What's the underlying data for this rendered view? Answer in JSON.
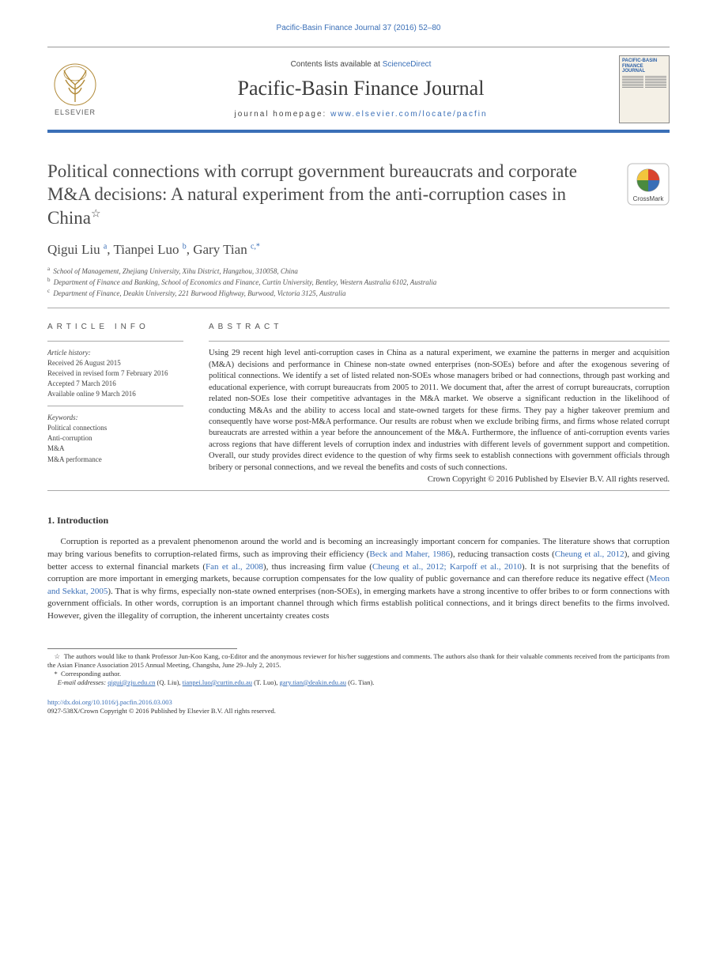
{
  "colors": {
    "link": "#3a6fb7",
    "text": "#333333",
    "rule_blue": "#3a6fb7",
    "muted": "#555555"
  },
  "typography": {
    "body_family": "Times New Roman",
    "sans_family": "Arial",
    "title_fontsize_pt": 17,
    "authors_fontsize_pt": 13,
    "abstract_fontsize_pt": 8,
    "body_fontsize_pt": 8.5,
    "footnote_fontsize_pt": 6.5
  },
  "running_head": "Pacific-Basin Finance Journal 37 (2016) 52–80",
  "masthead": {
    "contents_prefix": "Contents lists available at ",
    "contents_link": "ScienceDirect",
    "journal": "Pacific-Basin Finance Journal",
    "homepage_prefix": "journal homepage: ",
    "homepage_url": "www.elsevier.com/locate/pacfin",
    "publisher_word": "ELSEVIER",
    "cover_title": "PACIFIC-BASIN FINANCE JOURNAL"
  },
  "crossmark_label": "CrossMark",
  "title": "Political connections with corrupt government bureaucrats and corporate M&A decisions: A natural experiment from the anti-corruption cases in China",
  "title_star": "☆",
  "authors_line": {
    "items": [
      {
        "name": "Qigui Liu",
        "aff": "a"
      },
      {
        "name": "Tianpei Luo",
        "aff": "b"
      },
      {
        "name": "Gary Tian",
        "aff": "c,",
        "corr": "*"
      }
    ]
  },
  "affiliations": [
    {
      "key": "a",
      "text": "School of Management, Zhejiang University, Xihu District, Hangzhou, 310058, China"
    },
    {
      "key": "b",
      "text": "Department of Finance and Banking, School of Economics and Finance, Curtin University, Bentley, Western Australia 6102, Australia"
    },
    {
      "key": "c",
      "text": "Department of Finance, Deakin University, 221 Burwood Highway, Burwood, Victoria 3125, Australia"
    }
  ],
  "article_info": {
    "label": "article info",
    "history_label": "Article history:",
    "history": [
      "Received 26 August 2015",
      "Received in revised form 7 February 2016",
      "Accepted 7 March 2016",
      "Available online 9 March 2016"
    ],
    "keywords_label": "Keywords:",
    "keywords": [
      "Political connections",
      "Anti-corruption",
      "M&A",
      "M&A performance"
    ]
  },
  "abstract": {
    "label": "abstract",
    "text": "Using 29 recent high level anti-corruption cases in China as a natural experiment, we examine the patterns in merger and acquisition (M&A) decisions and performance in Chinese non-state owned enterprises (non-SOEs) before and after the exogenous severing of political connections. We identify a set of listed related non-SOEs whose managers bribed or had connections, through past working and educational experience, with corrupt bureaucrats from 2005 to 2011. We document that, after the arrest of corrupt bureaucrats, corruption related non-SOEs lose their competitive advantages in the M&A market. We observe a significant reduction in the likelihood of conducting M&As and the ability to access local and state-owned targets for these firms. They pay a higher takeover premium and consequently have worse post-M&A performance. Our results are robust when we exclude bribing firms, and firms whose related corrupt bureaucrats are arrested within a year before the announcement of the M&A. Furthermore, the influence of anti-corruption events varies across regions that have different levels of corruption index and industries with different levels of government support and competition. Overall, our study provides direct evidence to the question of why firms seek to establish connections with government officials through bribery or personal connections, and we reveal the benefits and costs of such connections.",
    "copyright": "Crown Copyright © 2016 Published by Elsevier B.V. All rights reserved."
  },
  "section1": {
    "heading": "1. Introduction",
    "para": "Corruption is reported as a prevalent phenomenon around the world and is becoming an increasingly important concern for companies. The literature shows that corruption may bring various benefits to corruption-related firms, such as improving their efficiency (Beck and Maher, 1986), reducing transaction costs (Cheung et al., 2012), and giving better access to external financial markets (Fan et al., 2008), thus increasing firm value (Cheung et al., 2012; Karpoff et al., 2010). It is not surprising that the benefits of corruption are more important in emerging markets, because corruption compensates for the low quality of public governance and can therefore reduce its negative effect (Meon and Sekkat, 2005). That is why firms, especially non-state owned enterprises (non-SOEs), in emerging markets have a strong incentive to offer bribes to or form connections with government officials. In other words, corruption is an important channel through which firms establish political connections, and it brings direct benefits to the firms involved. However, given the illegality of corruption, the inherent uncertainty creates costs",
    "citations": [
      "Beck and Maher, 1986",
      "Cheung et al., 2012",
      "Fan et al., 2008",
      "Cheung et al., 2012; Karpoff et al., 2010",
      "Meon and Sekkat, 2005"
    ]
  },
  "footnotes": {
    "ack": "The authors would like to thank Professor Jun-Koo Kang, co-Editor and the anonymous reviewer for his/her suggestions and comments. The authors also thank for their valuable comments received from the participants from the Asian Finance Association 2015 Annual Meeting, Changsha, June 29–July 2, 2015.",
    "corr": "Corresponding author.",
    "emails_label": "E-mail addresses: ",
    "emails": [
      {
        "addr": "qigui@zju.edu.cn",
        "who": "(Q. Liu)"
      },
      {
        "addr": "tianpei.luo@curtin.edu.au",
        "who": "(T. Luo)"
      },
      {
        "addr": "gary.tian@deakin.edu.au",
        "who": "(G. Tian)."
      }
    ]
  },
  "doi": {
    "url": "http://dx.doi.org/10.1016/j.pacfin.2016.03.003",
    "issn_line": "0927-538X/Crown Copyright © 2016 Published by Elsevier B.V. All rights reserved."
  }
}
